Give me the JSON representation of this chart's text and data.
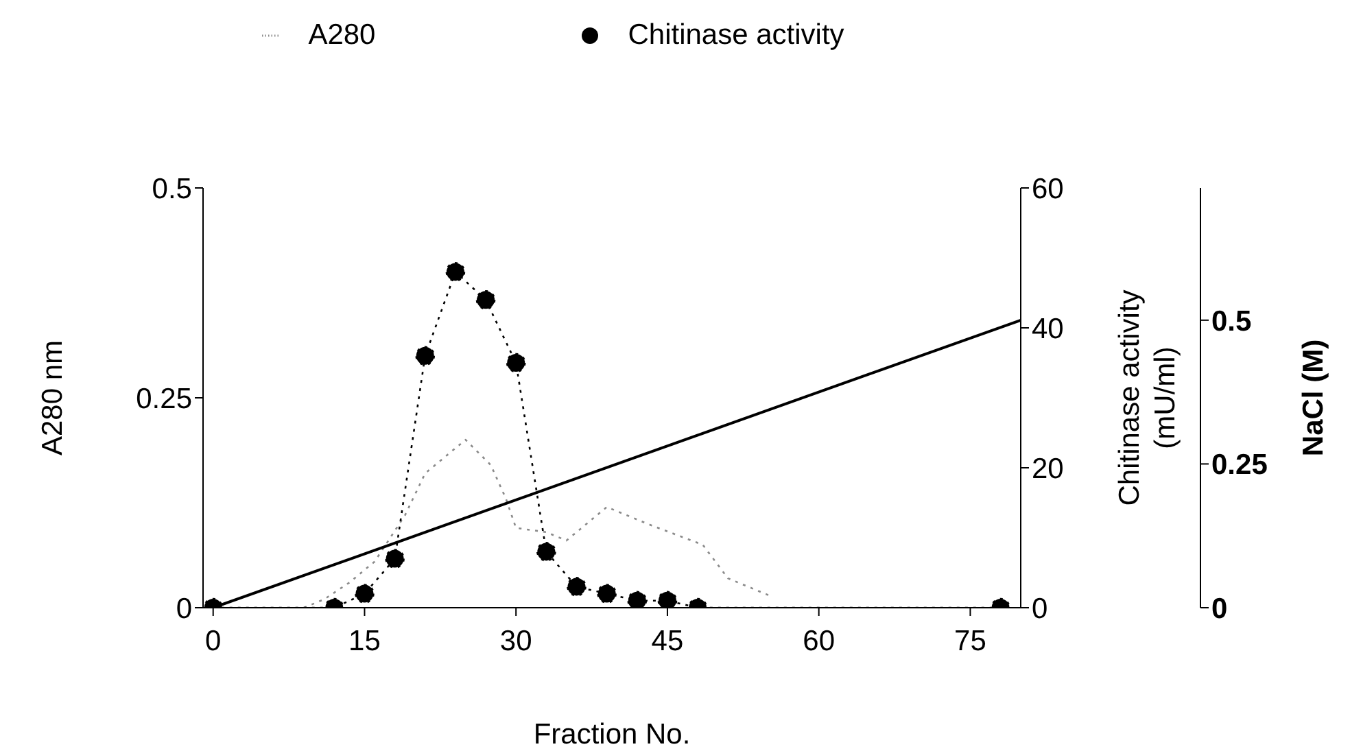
{
  "chart_data": {
    "type": "line",
    "xlabel": "Fraction No.",
    "ylabel": "A280 nm",
    "y2label": "Chitinase activity (mU/ml)",
    "y3label": "NaCl (M)",
    "xlim": [
      -1,
      80
    ],
    "xticks": [
      0,
      15,
      30,
      45,
      60,
      75
    ],
    "ylim": [
      0,
      0.5
    ],
    "yticks": [
      0,
      0.25,
      0.5
    ],
    "y2lim": [
      0,
      60
    ],
    "y2ticks": [
      0,
      20,
      40,
      60
    ],
    "y3lim": [
      0,
      0.73
    ],
    "y3ticks": [
      0,
      0.25,
      0.5
    ],
    "legend": "top",
    "series": [
      {
        "name": "A280",
        "color": "#8a8a8a",
        "marker": "none",
        "line_style": "dotted",
        "x": [
          9,
          11,
          13.5,
          16,
          19,
          21,
          23,
          25,
          27.5,
          29,
          30,
          33,
          35,
          39,
          43,
          48.5,
          51,
          55
        ],
        "values": [
          0,
          0.01,
          0.03,
          0.055,
          0.11,
          0.16,
          0.18,
          0.2,
          0.17,
          0.13,
          0.095,
          0.09,
          0.08,
          0.12,
          0.1,
          0.075,
          0.035,
          0.015
        ]
      },
      {
        "name": "Chitinase activity",
        "color": "#000000",
        "marker": "circle",
        "line_style": "dotted",
        "axis": "y2",
        "x": [
          0,
          12,
          15,
          18,
          21,
          24,
          27,
          30,
          33,
          36,
          39,
          42,
          45,
          48,
          78
        ],
        "values": [
          0,
          0,
          2,
          7,
          36,
          48,
          44,
          35,
          8,
          3,
          2,
          1,
          1,
          0,
          0
        ]
      },
      {
        "color": "#000000",
        "marker": "none",
        "line_style": "solid",
        "axis": "y3",
        "x": [
          0,
          80
        ],
        "values": [
          0,
          0.5
        ]
      }
    ]
  }
}
